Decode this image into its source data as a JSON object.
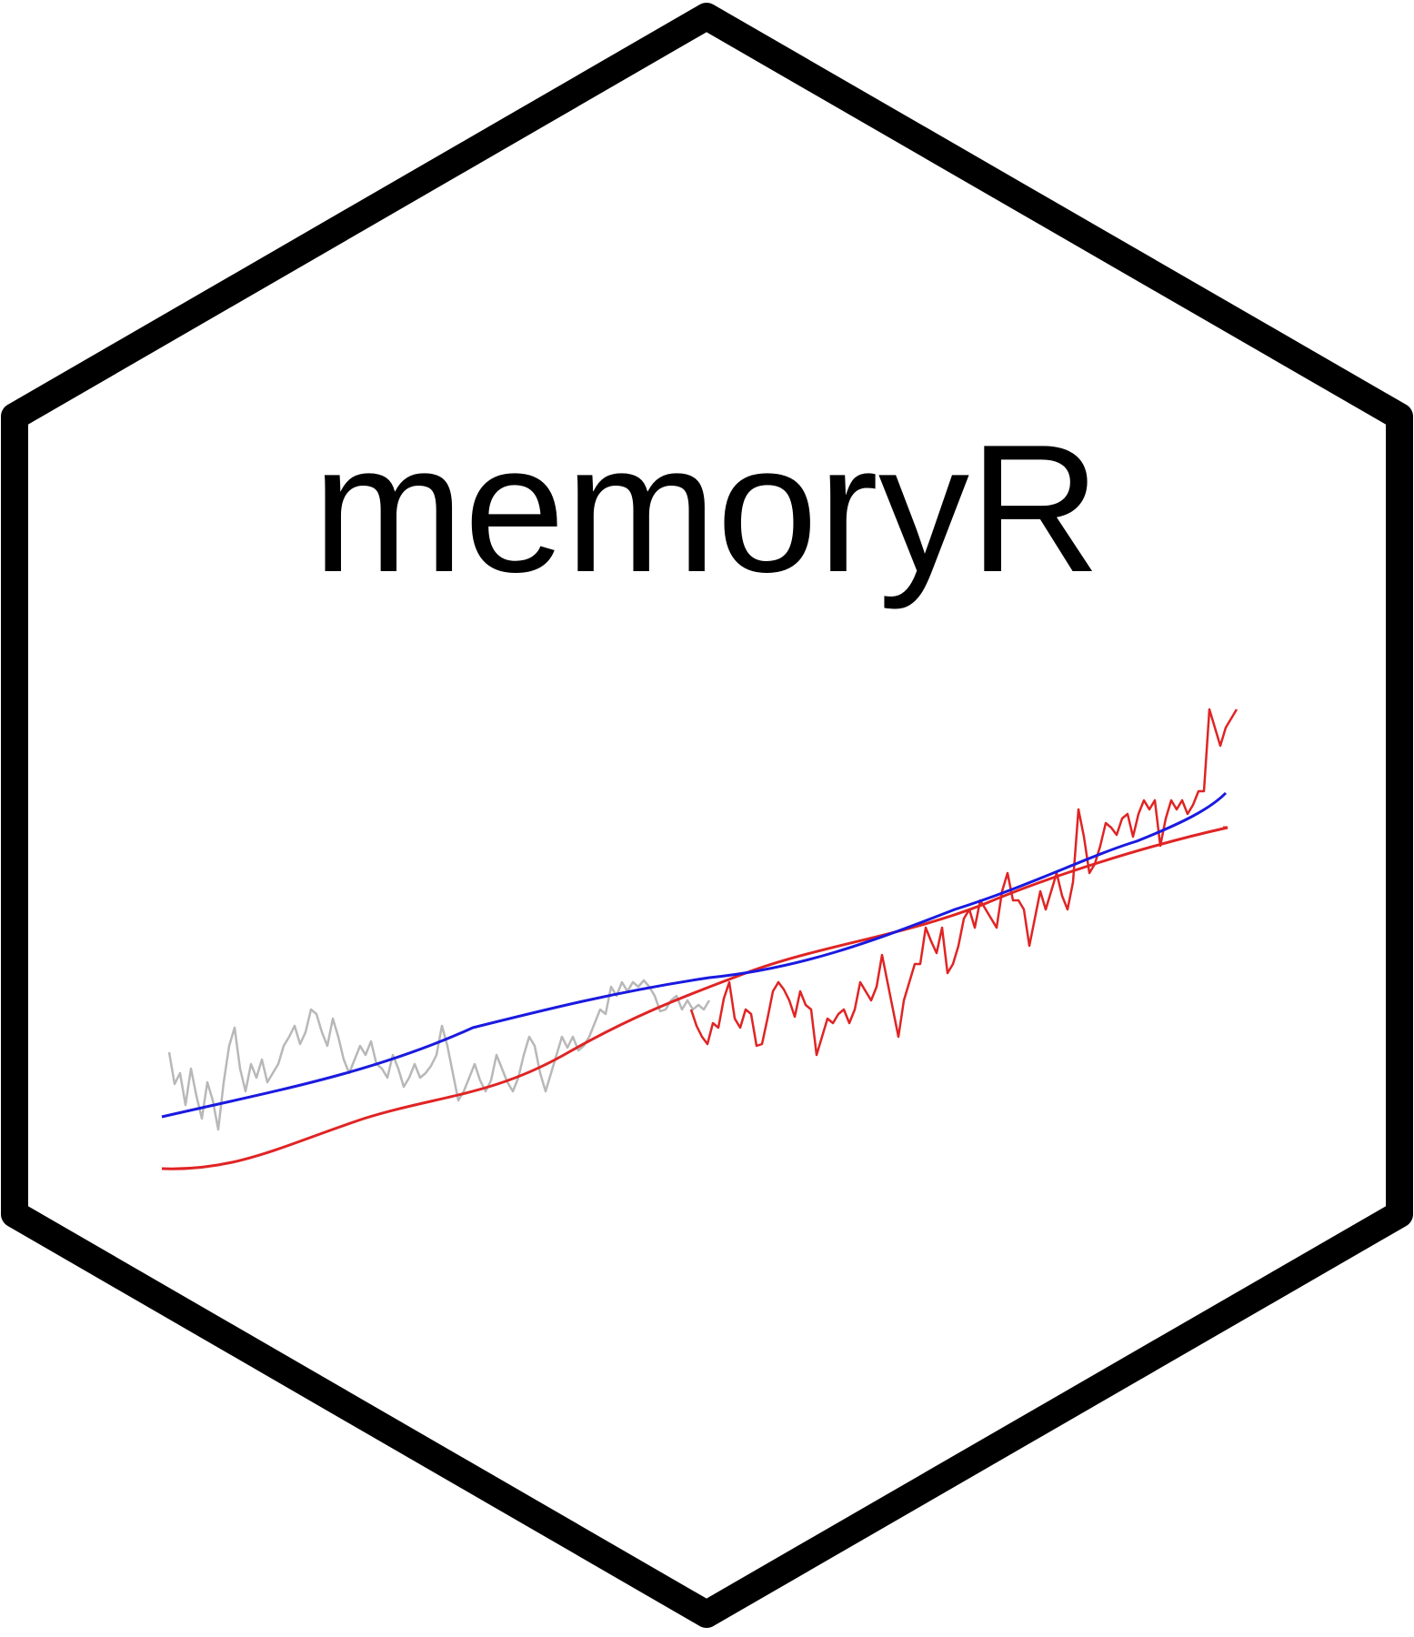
{
  "logo": {
    "title": "memoryR",
    "colors": {
      "background": "#ffffff",
      "border": "#000000",
      "text": "#000000",
      "accent_blue": "#1a1ae0",
      "accent_red": "#e02020",
      "muted_grey": "#b0b0b0"
    },
    "icons": [
      "hexagon-frame-icon",
      "time-series-plot-icon"
    ]
  }
}
